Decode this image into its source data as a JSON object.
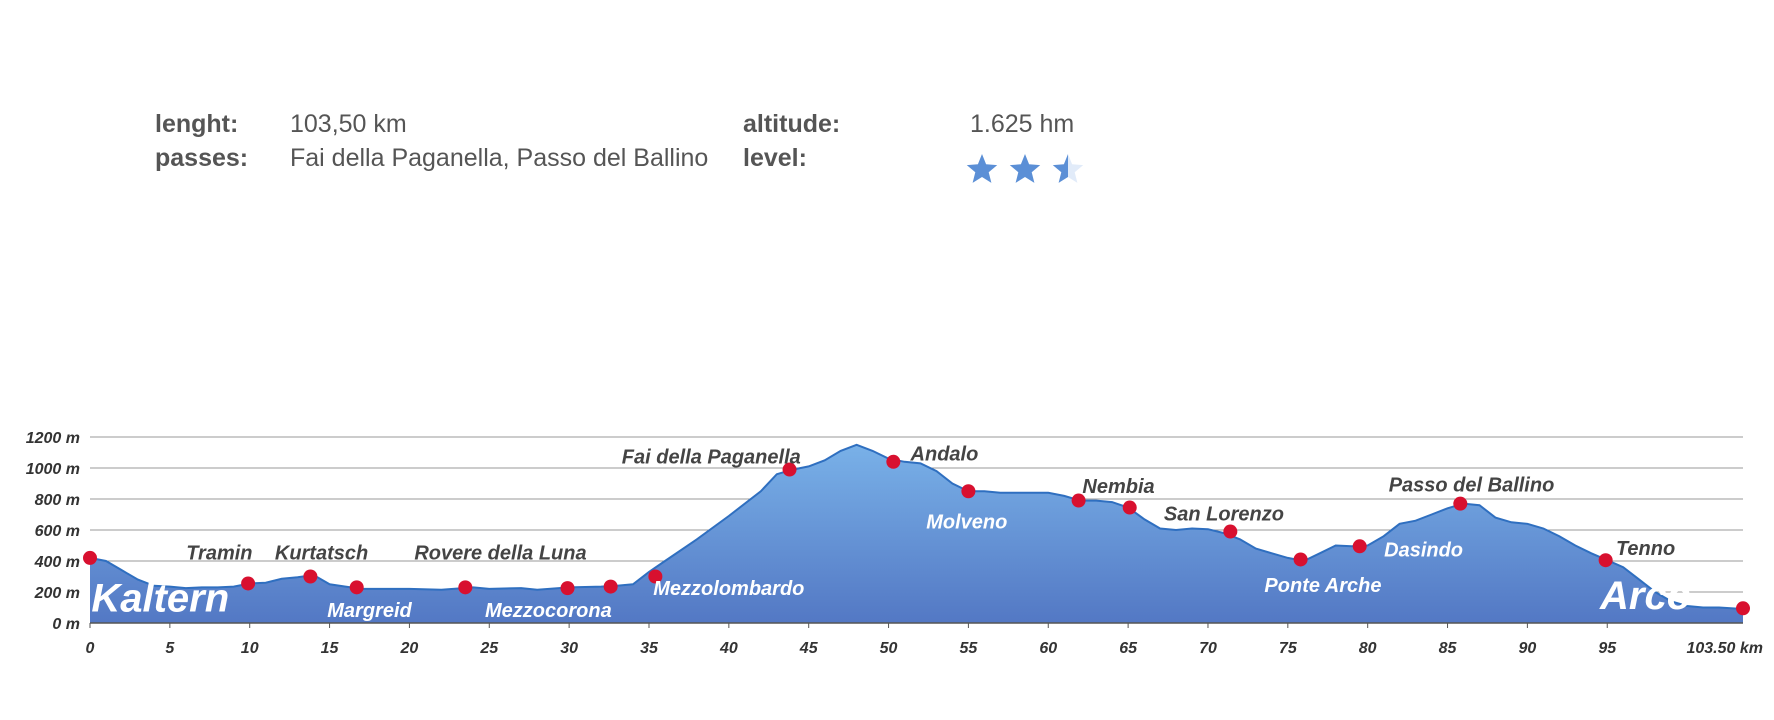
{
  "info": {
    "length_label": "lenght:",
    "length_value": "103,50 km",
    "passes_label": "passes:",
    "passes_value": "Fai della Paganella, Passo del Ballino",
    "altitude_label": "altitude:",
    "altitude_value": "1.625 hm",
    "level_label": "level:",
    "level_stars": 2.5,
    "star_color": "#5b8fd6"
  },
  "chart_data": {
    "type": "area",
    "title": "",
    "xlabel": "",
    "ylabel": "",
    "xlim": [
      0,
      103.5
    ],
    "ylim": [
      0,
      1200
    ],
    "x_ticks": [
      0,
      5,
      10,
      15,
      20,
      25,
      30,
      35,
      40,
      45,
      50,
      55,
      60,
      65,
      70,
      75,
      80,
      85,
      90,
      95
    ],
    "x_last_label": "103.50 km",
    "y_ticks": [
      0,
      200,
      400,
      600,
      800,
      1000,
      1200
    ],
    "y_tick_suffix": " m",
    "grid": true,
    "colors": {
      "fill_top": "#79b1e8",
      "fill_bottom": "#5378c4",
      "line": "#2f6fc0",
      "marker": "#d8102f"
    },
    "profile": [
      [
        0,
        420
      ],
      [
        1,
        400
      ],
      [
        2,
        340
      ],
      [
        3,
        280
      ],
      [
        4,
        240
      ],
      [
        5,
        235
      ],
      [
        6,
        225
      ],
      [
        7,
        230
      ],
      [
        8,
        230
      ],
      [
        9,
        235
      ],
      [
        10,
        255
      ],
      [
        11,
        260
      ],
      [
        12,
        285
      ],
      [
        13,
        295
      ],
      [
        14,
        310
      ],
      [
        15,
        250
      ],
      [
        16,
        235
      ],
      [
        17,
        220
      ],
      [
        18,
        220
      ],
      [
        20,
        220
      ],
      [
        22,
        215
      ],
      [
        24,
        230
      ],
      [
        25,
        220
      ],
      [
        27,
        225
      ],
      [
        28,
        215
      ],
      [
        30,
        230
      ],
      [
        32,
        235
      ],
      [
        33,
        240
      ],
      [
        34,
        250
      ],
      [
        35,
        330
      ],
      [
        36,
        400
      ],
      [
        38,
        540
      ],
      [
        40,
        690
      ],
      [
        42,
        850
      ],
      [
        43,
        960
      ],
      [
        44,
        990
      ],
      [
        45,
        1010
      ],
      [
        46,
        1050
      ],
      [
        47,
        1110
      ],
      [
        48,
        1150
      ],
      [
        49,
        1110
      ],
      [
        50,
        1060
      ],
      [
        51,
        1040
      ],
      [
        52,
        1030
      ],
      [
        53,
        980
      ],
      [
        54,
        900
      ],
      [
        55,
        850
      ],
      [
        56,
        850
      ],
      [
        57,
        840
      ],
      [
        58,
        840
      ],
      [
        60,
        840
      ],
      [
        61,
        820
      ],
      [
        62,
        790
      ],
      [
        63,
        790
      ],
      [
        64,
        780
      ],
      [
        65,
        745
      ],
      [
        66,
        670
      ],
      [
        67,
        610
      ],
      [
        68,
        600
      ],
      [
        69,
        610
      ],
      [
        70,
        605
      ],
      [
        71,
        580
      ],
      [
        72,
        540
      ],
      [
        73,
        480
      ],
      [
        74,
        450
      ],
      [
        75,
        420
      ],
      [
        76,
        400
      ],
      [
        77,
        450
      ],
      [
        78,
        500
      ],
      [
        79,
        495
      ],
      [
        80,
        500
      ],
      [
        81,
        560
      ],
      [
        82,
        640
      ],
      [
        83,
        660
      ],
      [
        84,
        700
      ],
      [
        85,
        740
      ],
      [
        86,
        770
      ],
      [
        87,
        760
      ],
      [
        88,
        680
      ],
      [
        89,
        650
      ],
      [
        90,
        640
      ],
      [
        91,
        610
      ],
      [
        92,
        560
      ],
      [
        93,
        500
      ],
      [
        94,
        450
      ],
      [
        95,
        405
      ],
      [
        96,
        360
      ],
      [
        97,
        280
      ],
      [
        98,
        200
      ],
      [
        99,
        140
      ],
      [
        100,
        110
      ],
      [
        101,
        100
      ],
      [
        102,
        100
      ],
      [
        103.5,
        90
      ]
    ],
    "stops": [
      {
        "name": "Kaltern",
        "km": 0,
        "alt": 420,
        "label_km": 4.4,
        "label_alt": 75,
        "style": "big-in"
      },
      {
        "name": "Tramin",
        "km": 9.9,
        "alt": 255,
        "label_km": 8.1,
        "label_alt": 410,
        "style": "place"
      },
      {
        "name": "Kurtatsch",
        "km": 13.8,
        "alt": 300,
        "label_km": 14.5,
        "label_alt": 410,
        "style": "place"
      },
      {
        "name": "Margreid",
        "km": 16.7,
        "alt": 230,
        "label_km": 17.5,
        "label_alt": 40,
        "style": "place-in"
      },
      {
        "name": "Rovere della Luna",
        "km": 23.5,
        "alt": 230,
        "label_km": 25.7,
        "label_alt": 410,
        "style": "place"
      },
      {
        "name": "Mezzocorona",
        "km": 29.9,
        "alt": 225,
        "label_km": 28.7,
        "label_alt": 40,
        "style": "place-in"
      },
      {
        "name": "",
        "km": 32.6,
        "alt": 235,
        "label_km": 32.6,
        "label_alt": 235,
        "style": "place"
      },
      {
        "name": "Mezzolombardo",
        "km": 35.4,
        "alt": 300,
        "label_km": 40.0,
        "label_alt": 180,
        "style": "place-in"
      },
      {
        "name": "Fai della Paganella",
        "km": 43.8,
        "alt": 990,
        "label_km": 38.9,
        "label_alt": 1030,
        "style": "place"
      },
      {
        "name": "Andalo",
        "km": 50.3,
        "alt": 1040,
        "label_km": 53.5,
        "label_alt": 1050,
        "style": "place"
      },
      {
        "name": "Molveno",
        "km": 55.0,
        "alt": 850,
        "label_km": 54.9,
        "label_alt": 610,
        "style": "place-in"
      },
      {
        "name": "Nembia",
        "km": 61.9,
        "alt": 790,
        "label_km": 64.4,
        "label_alt": 840,
        "style": "place"
      },
      {
        "name": "",
        "km": 65.1,
        "alt": 745,
        "label_km": 65.1,
        "label_alt": 745,
        "style": "place"
      },
      {
        "name": "San Lorenzo",
        "km": 71.4,
        "alt": 590,
        "label_km": 71.0,
        "label_alt": 660,
        "style": "place"
      },
      {
        "name": "Ponte Arche",
        "km": 75.8,
        "alt": 410,
        "label_km": 77.2,
        "label_alt": 200,
        "style": "place-in"
      },
      {
        "name": "Dasindo",
        "km": 79.5,
        "alt": 495,
        "label_km": 83.5,
        "label_alt": 430,
        "style": "place-in"
      },
      {
        "name": "Passo del Ballino",
        "km": 85.8,
        "alt": 770,
        "label_km": 86.5,
        "label_alt": 850,
        "style": "place"
      },
      {
        "name": "Tenno",
        "km": 94.9,
        "alt": 405,
        "label_km": 97.4,
        "label_alt": 440,
        "style": "place"
      },
      {
        "name": "Arco",
        "km": 97.6,
        "alt": 260,
        "label_km": 97.4,
        "label_alt": 90,
        "style": "big-in"
      },
      {
        "name": "",
        "km": 103.5,
        "alt": 95,
        "label_km": 103.5,
        "label_alt": 95,
        "style": "place"
      }
    ]
  }
}
